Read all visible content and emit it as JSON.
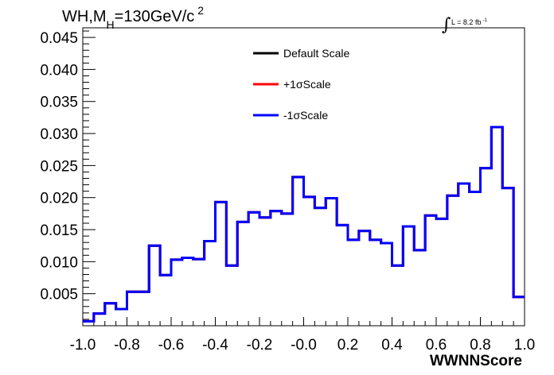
{
  "title": {
    "prefix": "WH,M",
    "subscript": "H",
    "value": "=130GeV/c",
    "superscript": "2"
  },
  "luminosity": {
    "symbol": "∫",
    "label": "L = 8.2 fb",
    "superscript": "-1"
  },
  "legend": [
    {
      "label": "Default Scale",
      "color": "#000000"
    },
    {
      "label": "+1σScale",
      "color": "#ff0000"
    },
    {
      "label": "-1σScale",
      "color": "#0000ff"
    }
  ],
  "x_tick_labels": [
    "-1.0",
    "-0.8",
    "-0.6",
    "-0.4",
    "-0.2",
    "-0.0",
    "0.2",
    "0.4",
    "0.6",
    "0.8",
    "1.0"
  ],
  "y_tick_labels": [
    "0.005",
    "0.010",
    "0.015",
    "0.020",
    "0.025",
    "0.030",
    "0.035",
    "0.040",
    "0.045"
  ],
  "chart_data": {
    "type": "line",
    "title": "WH,MH=130GeV/c2",
    "xlabel": "WWNNScore",
    "ylabel": "",
    "xlim": [
      -1.0,
      1.0
    ],
    "ylim": [
      0.0,
      0.0465
    ],
    "bin_edges": [
      -1.0,
      -0.95,
      -0.9,
      -0.85,
      -0.8,
      -0.75,
      -0.7,
      -0.65,
      -0.6,
      -0.55,
      -0.5,
      -0.45,
      -0.4,
      -0.35,
      -0.3,
      -0.25,
      -0.2,
      -0.15,
      -0.1,
      -0.05,
      0.0,
      0.05,
      0.1,
      0.15,
      0.2,
      0.25,
      0.3,
      0.35,
      0.4,
      0.45,
      0.5,
      0.55,
      0.6,
      0.65,
      0.7,
      0.75,
      0.8,
      0.85,
      0.9,
      0.95,
      1.0
    ],
    "series": [
      {
        "name": "Default Scale",
        "color": "#000000",
        "values": [
          0.0007,
          0.0019,
          0.0035,
          0.0026,
          0.0053,
          0.0053,
          0.0125,
          0.0079,
          0.0103,
          0.0106,
          0.0104,
          0.0132,
          0.0193,
          0.0094,
          0.0162,
          0.0177,
          0.0169,
          0.0179,
          0.0175,
          0.0232,
          0.0201,
          0.0184,
          0.0199,
          0.0157,
          0.0134,
          0.0148,
          0.0134,
          0.0129,
          0.0094,
          0.0155,
          0.0118,
          0.0172,
          0.0167,
          0.0203,
          0.0222,
          0.0209,
          0.0246,
          0.031,
          0.0215,
          0.0045
        ]
      },
      {
        "name": "+1σScale",
        "color": "#ff0000",
        "values": [
          0.0007,
          0.0019,
          0.0035,
          0.0026,
          0.0053,
          0.0053,
          0.0125,
          0.0079,
          0.0103,
          0.0106,
          0.0104,
          0.0132,
          0.0193,
          0.0094,
          0.0162,
          0.0177,
          0.0169,
          0.0179,
          0.0175,
          0.0232,
          0.0201,
          0.0184,
          0.0199,
          0.0157,
          0.0134,
          0.0148,
          0.0134,
          0.0129,
          0.0094,
          0.0155,
          0.0118,
          0.0172,
          0.0167,
          0.0203,
          0.0222,
          0.0209,
          0.0246,
          0.031,
          0.0215,
          0.0045
        ]
      },
      {
        "name": "-1σScale",
        "color": "#0000ff",
        "values": [
          0.0007,
          0.0019,
          0.0035,
          0.0026,
          0.0053,
          0.0053,
          0.0125,
          0.0079,
          0.0103,
          0.0106,
          0.0104,
          0.0132,
          0.0193,
          0.0094,
          0.0162,
          0.0177,
          0.0169,
          0.0179,
          0.0175,
          0.0232,
          0.0201,
          0.0184,
          0.0199,
          0.0157,
          0.0134,
          0.0148,
          0.0134,
          0.0129,
          0.0094,
          0.0155,
          0.0118,
          0.0172,
          0.0167,
          0.0203,
          0.0222,
          0.0209,
          0.0246,
          0.031,
          0.0215,
          0.0045
        ]
      }
    ],
    "grid": false,
    "legend_position": "top-center"
  }
}
